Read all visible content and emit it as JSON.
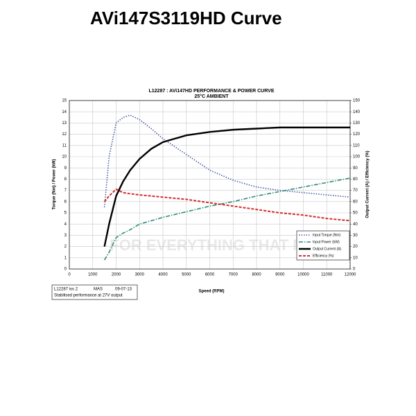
{
  "page_title": "AVi147S3119HD Curve",
  "watermark": "FOR EVERYTHING THAT MOVES",
  "info": {
    "line1": [
      "L12287 iss 2",
      "MAS",
      "09-07-13"
    ],
    "line2": "Stabilised performance at 27V output"
  },
  "chart_data": {
    "type": "line",
    "title": "L12287 : AVi147HD PERFORMANCE & POWER CURVE",
    "subtitle": "25°C AMBIENT",
    "x_label": "Speed (RPM)",
    "y_label": "Torque (Nm) / Power (kW)",
    "y2_label": "Output Current (A) / Efficiency (%)",
    "x": [
      1500,
      1700,
      2000,
      2300,
      2600,
      3000,
      3500,
      4000,
      5000,
      6000,
      7000,
      8000,
      9000,
      10000,
      11000,
      12000
    ],
    "series": [
      {
        "name": "Input Torque (Nm)",
        "color": "#4a5aa8",
        "values": [
          5.5,
          10,
          13,
          13.5,
          13.7,
          13.3,
          12.5,
          11.6,
          10.2,
          8.8,
          7.9,
          7.3,
          7.0,
          6.8,
          6.6,
          6.4
        ]
      },
      {
        "name": "Input Power (kW)",
        "color": "#2e8b7a",
        "values": [
          0.8,
          1.5,
          2.8,
          3.2,
          3.5,
          4.0,
          4.3,
          4.6,
          5.1,
          5.6,
          6.0,
          6.5,
          6.9,
          7.3,
          7.7,
          8.1
        ]
      },
      {
        "name": "Output Current (A)",
        "color": "#000000",
        "axis": "y2",
        "values": [
          20,
          40,
          65,
          78,
          88,
          98,
          107,
          113,
          119,
          122,
          124,
          125,
          126,
          126,
          126,
          126
        ]
      },
      {
        "name": "Efficiency (%)",
        "color": "#d42a2a",
        "axis": "y2",
        "values": [
          60,
          65,
          71,
          68,
          67,
          66,
          65,
          64,
          62,
          59,
          56,
          53,
          50,
          48,
          45,
          43
        ]
      }
    ],
    "xlim": [
      0,
      12000
    ],
    "xticks": [
      0,
      1000,
      2000,
      3000,
      4000,
      5000,
      6000,
      7000,
      8000,
      9000,
      10000,
      11000,
      12000
    ],
    "ylim": [
      0,
      15
    ],
    "yticks": [
      0,
      1,
      2,
      3,
      4,
      5,
      6,
      7,
      8,
      9,
      10,
      11,
      12,
      13,
      14,
      15
    ],
    "y2lim": [
      0,
      150
    ],
    "y2ticks": [
      0,
      10,
      20,
      30,
      40,
      50,
      60,
      70,
      80,
      90,
      100,
      110,
      120,
      130,
      140,
      150
    ],
    "grid": true,
    "legend": "lower right"
  }
}
